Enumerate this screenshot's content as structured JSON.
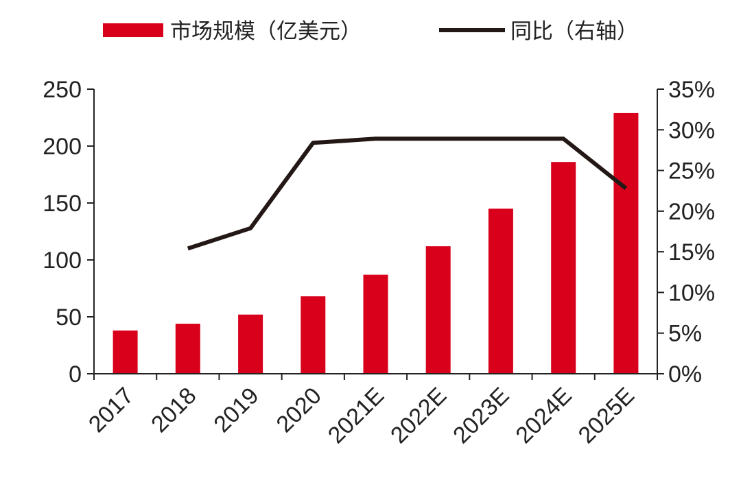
{
  "chart_data": {
    "type": "bar",
    "categories": [
      "2017",
      "2018",
      "2019",
      "2020",
      "2021E",
      "2022E",
      "2023E",
      "2024E",
      "2025E"
    ],
    "series": [
      {
        "name": "市场规模（亿美元）",
        "type": "bar",
        "axis": "left",
        "color": "#D9001B",
        "values": [
          38,
          44,
          52,
          68,
          87,
          112,
          145,
          186,
          229
        ]
      },
      {
        "name": "同比（右轴）",
        "type": "line",
        "axis": "right",
        "color": "#231815",
        "values": [
          null,
          0.154,
          0.179,
          0.284,
          0.289,
          0.289,
          0.289,
          0.289,
          0.228
        ]
      }
    ],
    "y_left": {
      "ylim": [
        0,
        250
      ],
      "ticks": [
        0,
        50,
        100,
        150,
        200,
        250
      ],
      "tick_labels": [
        "0",
        "50",
        "100",
        "150",
        "200",
        "250"
      ]
    },
    "y_right": {
      "ylim": [
        0,
        0.35
      ],
      "ticks": [
        0,
        0.05,
        0.1,
        0.15,
        0.2,
        0.25,
        0.3,
        0.35
      ],
      "tick_labels": [
        "0%",
        "5%",
        "10%",
        "15%",
        "20%",
        "25%",
        "30%",
        "35%"
      ]
    },
    "legend": {
      "position": "top",
      "entries": [
        "市场规模（亿美元）",
        "同比（右轴）"
      ]
    },
    "grid": false,
    "title": "",
    "xlabel": "",
    "ylabel": ""
  }
}
